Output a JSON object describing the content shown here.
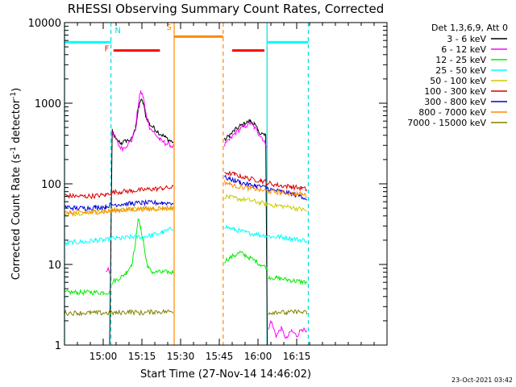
{
  "chart_data": {
    "type": "line",
    "title": "RHESSI Observing Summary Count Rates, Corrected",
    "xlabel": "Start Time (27-Nov-14 14:46:02)",
    "ylabel_main": "Corrected Count Rate (s",
    "ylabel_sup": "-1",
    "ylabel_mid": " detector",
    "ylabel_sup2": "-1",
    "ylabel_end": ")",
    "x_range_min": [
      0,
      125
    ],
    "y_scale": "log",
    "ylim": [
      1,
      10000
    ],
    "x_ticks": [
      {
        "min": 15,
        "label": "15:00"
      },
      {
        "min": 30,
        "label": "15:15"
      },
      {
        "min": 45,
        "label": "15:30"
      },
      {
        "min": 60,
        "label": "15:45"
      },
      {
        "min": 75,
        "label": "16:00"
      },
      {
        "min": 90,
        "label": "16:15"
      }
    ],
    "y_ticks": [
      {
        "value": 1,
        "label": "1"
      },
      {
        "value": 10,
        "label": "10"
      },
      {
        "value": 100,
        "label": "100"
      },
      {
        "value": 1000,
        "label": "1000"
      },
      {
        "value": 10000,
        "label": "10000"
      }
    ],
    "legend_header": "Det 1,3,6,9, Att 0",
    "legend_position": "right, outside",
    "series": [
      {
        "name": "3 - 6 keV",
        "color": "#000000",
        "segments": [
          {
            "x": [
              17.5,
              18.5,
              20,
              22,
              24,
              26,
              27.5,
              28.5,
              29.5,
              30.5,
              31.5,
              33,
              35,
              37,
              39,
              41,
              42.2
            ],
            "y": [
              1,
              450,
              350,
              320,
              340,
              360,
              480,
              800,
              1100,
              1000,
              700,
              550,
              480,
              420,
              380,
              340,
              330
            ]
          },
          {
            "x": [
              62,
              64,
              66,
              68,
              70,
              72,
              73.5,
              75,
              76.5,
              77.5,
              78,
              78.6
            ],
            "y": [
              350,
              400,
              460,
              520,
              560,
              600,
              560,
              450,
              420,
              400,
              390,
              1
            ]
          }
        ]
      },
      {
        "name": "6 - 12 keV",
        "color": "#ff00ff",
        "segments": [
          {
            "x": [
              16,
              17,
              17.5
            ],
            "y": [
              8,
              9,
              8
            ]
          },
          {
            "x": [
              18.5,
              19.5,
              21,
              22.5,
              24,
              26,
              27.5,
              28.5,
              29.5,
              30.5,
              31.5,
              33,
              35,
              37,
              39,
              41,
              42.2
            ],
            "y": [
              450,
              380,
              300,
              270,
              300,
              340,
              500,
              900,
              1400,
              1200,
              750,
              500,
              420,
              350,
              320,
              300,
              290
            ]
          },
          {
            "x": [
              62,
              64,
              66,
              68,
              70,
              72,
              73.5,
              75,
              76.5,
              77.5,
              78.6
            ],
            "y": [
              300,
              350,
              420,
              480,
              520,
              560,
              500,
              430,
              380,
              330,
              300
            ]
          },
          {
            "x": [
              79,
              80,
              82,
              84,
              86,
              88,
              90,
              92,
              94
            ],
            "y": [
              1.5,
              2,
              1.3,
              1.6,
              1.2,
              1.5,
              1.3,
              1.6,
              1.4
            ]
          }
        ]
      },
      {
        "name": "12 - 25 keV",
        "color": "#00ee00",
        "segments": [
          {
            "x": [
              0,
              5,
              10,
              15,
              17.5
            ],
            "y": [
              4.5,
              4.5,
              4.5,
              4.5,
              4.5
            ]
          },
          {
            "x": [
              18.5,
              20,
              22,
              24,
              26,
              27.5,
              28.5,
              29.5,
              30.5,
              31.5,
              32.5,
              34,
              36,
              38,
              40,
              42.2
            ],
            "y": [
              6,
              6.5,
              7,
              8,
              10,
              18,
              38,
              28,
              20,
              12,
              9,
              8,
              8,
              8,
              8,
              8
            ]
          },
          {
            "x": [
              62,
              64,
              66,
              68,
              70,
              72,
              74,
              76,
              78.6
            ],
            "y": [
              11,
              12,
              13,
              14,
              13,
              12,
              11,
              10,
              9
            ]
          },
          {
            "x": [
              79,
              82,
              86,
              90,
              94
            ],
            "y": [
              7,
              6.8,
              6.5,
              6.2,
              6
            ]
          }
        ]
      },
      {
        "name": "25 - 50 keV",
        "color": "#00ffff",
        "segments": [
          {
            "x": [
              0,
              4,
              8,
              12,
              16,
              18,
              22,
              26,
              30,
              34,
              38,
              42.2
            ],
            "y": [
              18,
              19,
              19,
              20,
              20,
              21,
              21,
              22,
              22,
              23,
              25,
              28
            ]
          },
          {
            "x": [
              62,
              64,
              66,
              68,
              70,
              72,
              74,
              76,
              78,
              80,
              84,
              88,
              92,
              94
            ],
            "y": [
              30,
              28,
              27,
              26,
              25,
              24,
              24,
              23,
              23,
              22,
              22,
              21,
              20,
              20
            ]
          }
        ]
      },
      {
        "name": "50 - 100 keV",
        "color": "#cccc00",
        "segments": [
          {
            "x": [
              0,
              4,
              8,
              12,
              16,
              18,
              22,
              26,
              30,
              34,
              38,
              42.2
            ],
            "y": [
              42,
              43,
              44,
              45,
              46,
              47,
              48,
              48,
              49,
              49,
              50,
              50
            ]
          },
          {
            "x": [
              62,
              64,
              66,
              68,
              70,
              72,
              74,
              76,
              78,
              80,
              84,
              88,
              92,
              94
            ],
            "y": [
              70,
              68,
              66,
              65,
              63,
              62,
              60,
              58,
              57,
              55,
              53,
              51,
              48,
              46
            ]
          }
        ]
      },
      {
        "name": "100 - 300 keV",
        "color": "#dd0000",
        "segments": [
          {
            "x": [
              0,
              4,
              8,
              12,
              16,
              18,
              22,
              26,
              30,
              34,
              38,
              42.2
            ],
            "y": [
              72,
              70,
              70,
              71,
              73,
              78,
              80,
              82,
              84,
              86,
              88,
              90
            ]
          },
          {
            "x": [
              62,
              64,
              66,
              68,
              70,
              72,
              74,
              76,
              78,
              80,
              84,
              88,
              92,
              94
            ],
            "y": [
              140,
              135,
              130,
              125,
              120,
              115,
              112,
              110,
              105,
              100,
              95,
              92,
              88,
              85
            ]
          }
        ]
      },
      {
        "name": "300 - 800 keV",
        "color": "#0000dd",
        "segments": [
          {
            "x": [
              0,
              4,
              8,
              12,
              16,
              18,
              22,
              26,
              30,
              34,
              38,
              42.2
            ],
            "y": [
              52,
              50,
              50,
              51,
              52,
              55,
              56,
              57,
              58,
              58,
              58,
              58
            ]
          },
          {
            "x": [
              62,
              64,
              66,
              68,
              70,
              72,
              74,
              76,
              78,
              80,
              84,
              88,
              92,
              94
            ],
            "y": [
              120,
              115,
              110,
              105,
              100,
              97,
              95,
              92,
              90,
              85,
              80,
              75,
              70,
              65
            ]
          }
        ]
      },
      {
        "name": "800 - 7000 keV",
        "color": "#ff8800",
        "segments": [
          {
            "x": [
              0,
              4,
              8,
              12,
              16,
              18,
              22,
              26,
              30,
              34,
              38,
              42.2
            ],
            "y": [
              43,
              44,
              44,
              45,
              45,
              46,
              47,
              48,
              49,
              49,
              50,
              50
            ]
          },
          {
            "x": [
              62,
              64,
              66,
              68,
              70,
              72,
              74,
              76,
              78,
              80,
              84,
              88,
              92,
              94
            ],
            "y": [
              105,
              100,
              95,
              92,
              90,
              88,
              86,
              84,
              82,
              80,
              78,
              76,
              74,
              72
            ]
          }
        ]
      },
      {
        "name": "7000 - 15000 keV",
        "color": "#808000",
        "segments": [
          {
            "x": [
              0,
              5,
              10,
              15,
              20,
              25,
              30,
              35,
              42.2
            ],
            "y": [
              2.5,
              2.5,
              2.5,
              2.5,
              2.5,
              2.6,
              2.5,
              2.6,
              2.6
            ]
          },
          {
            "x": [
              79,
              82,
              86,
              90,
              94
            ],
            "y": [
              2.5,
              2.6,
              2.5,
              2.6,
              2.5
            ]
          }
        ]
      }
    ],
    "annotations": [
      {
        "kind": "vline_dashed",
        "x_min": 18,
        "color": "#00dddd"
      },
      {
        "kind": "vline_solid",
        "x_min": 0,
        "color": "#00dddd"
      },
      {
        "kind": "vline_solid",
        "x_min": 42.5,
        "color": "#ff8800"
      },
      {
        "kind": "vline_dashed",
        "x_min": 61.5,
        "color": "#ff8800"
      },
      {
        "kind": "vline_solid",
        "x_min": 78.5,
        "color": "#00dddd"
      },
      {
        "kind": "vline_dashed",
        "x_min": 94.5,
        "color": "#00dddd"
      },
      {
        "kind": "hbar",
        "x0_min": 0,
        "x1_min": 18,
        "y": 5700,
        "color": "#00ffff"
      },
      {
        "kind": "hbar",
        "x0_min": 78.5,
        "x1_min": 94.5,
        "y": 5700,
        "color": "#00ffff"
      },
      {
        "kind": "hbar",
        "x0_min": 42.5,
        "x1_min": 61.5,
        "y": 6700,
        "color": "#ff8800"
      },
      {
        "kind": "hbar",
        "x0_min": 19,
        "x1_min": 37,
        "y": 4500,
        "color": "#ff0000"
      },
      {
        "kind": "hbar",
        "x0_min": 65,
        "x1_min": 77.5,
        "y": 4500,
        "color": "#ff0000"
      },
      {
        "kind": "label",
        "text": "N",
        "x_min": 19.5,
        "y": 7400,
        "color": "#00dddd"
      },
      {
        "kind": "label",
        "text": "F",
        "x_min": 15.5,
        "y": 4400,
        "color": "#ff0000"
      },
      {
        "kind": "label",
        "text": "S",
        "x_min": 39.5,
        "y": 8100,
        "color": "#ff8800"
      }
    ]
  },
  "footer": {
    "date_stamp": "23-Oct-2021 03:42"
  }
}
